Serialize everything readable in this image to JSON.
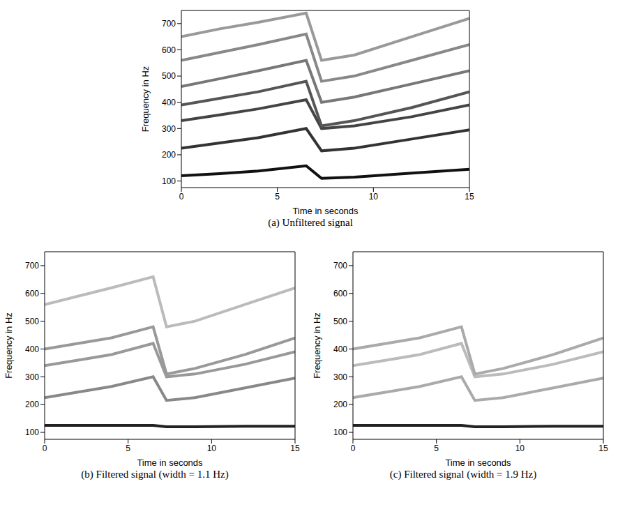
{
  "chart_data": [
    {
      "type": "line",
      "title": "(a) Unfiltered signal",
      "x_label": "Time in seconds",
      "y_label": "Frequency in Hz",
      "x": [
        0,
        2,
        4,
        6.5,
        7.3,
        9,
        12,
        15
      ],
      "xlim": [
        0,
        15
      ],
      "xticks": [
        0,
        5,
        10,
        15
      ],
      "ylim": [
        75,
        750
      ],
      "yticks": [
        100,
        200,
        300,
        400,
        500,
        600,
        700
      ],
      "series": [
        {
          "color": "#111111",
          "values": [
            120,
            128,
            138,
            158,
            110,
            115,
            130,
            145
          ]
        },
        {
          "color": "#333333",
          "values": [
            225,
            245,
            265,
            300,
            215,
            225,
            260,
            295
          ]
        },
        {
          "color": "#444444",
          "values": [
            330,
            352,
            375,
            410,
            300,
            310,
            345,
            390
          ]
        },
        {
          "color": "#555555",
          "values": [
            390,
            415,
            440,
            480,
            310,
            330,
            380,
            440
          ]
        },
        {
          "color": "#777777",
          "values": [
            460,
            490,
            520,
            560,
            400,
            420,
            470,
            520
          ]
        },
        {
          "color": "#888888",
          "values": [
            560,
            590,
            620,
            660,
            480,
            500,
            560,
            620
          ]
        },
        {
          "color": "#999999",
          "values": [
            650,
            680,
            705,
            740,
            560,
            580,
            650,
            720
          ]
        }
      ]
    },
    {
      "type": "line",
      "title": "(b) Filtered signal (width = 1.1 Hz)",
      "x_label": "Time in seconds",
      "y_label": "Frequency in Hz",
      "x": [
        0,
        2,
        4,
        6.5,
        7.3,
        9,
        12,
        15
      ],
      "xlim": [
        0,
        15
      ],
      "xticks": [
        0,
        5,
        10,
        15
      ],
      "ylim": [
        75,
        750
      ],
      "yticks": [
        100,
        200,
        300,
        400,
        500,
        600,
        700
      ],
      "series": [
        {
          "color": "#222222",
          "values": [
            125,
            125,
            125,
            125,
            120,
            120,
            122,
            122
          ]
        },
        {
          "color": "#888888",
          "values": [
            225,
            245,
            265,
            300,
            215,
            225,
            260,
            295
          ]
        },
        {
          "color": "#999999",
          "values": [
            340,
            360,
            380,
            420,
            300,
            310,
            345,
            390
          ]
        },
        {
          "color": "#999999",
          "values": [
            400,
            420,
            440,
            480,
            310,
            330,
            380,
            440
          ]
        },
        {
          "color": "#bbbbbb",
          "values": [
            560,
            590,
            620,
            660,
            480,
            500,
            560,
            620
          ]
        }
      ]
    },
    {
      "type": "line",
      "title": "(c) Filtered signal (width = 1.9 Hz)",
      "x_label": "Time in seconds",
      "y_label": "Frequency in Hz",
      "x": [
        0,
        2,
        4,
        6.5,
        7.3,
        9,
        12,
        15
      ],
      "xlim": [
        0,
        15
      ],
      "xticks": [
        0,
        5,
        10,
        15
      ],
      "ylim": [
        75,
        750
      ],
      "yticks": [
        100,
        200,
        300,
        400,
        500,
        600,
        700
      ],
      "series": [
        {
          "color": "#222222",
          "values": [
            125,
            125,
            125,
            125,
            120,
            120,
            122,
            122
          ]
        },
        {
          "color": "#aaaaaa",
          "values": [
            225,
            245,
            265,
            300,
            215,
            225,
            260,
            295
          ]
        },
        {
          "color": "#bbbbbb",
          "values": [
            340,
            360,
            380,
            420,
            300,
            310,
            345,
            390
          ]
        },
        {
          "color": "#aaaaaa",
          "values": [
            400,
            420,
            440,
            480,
            310,
            330,
            380,
            440
          ]
        }
      ]
    }
  ]
}
